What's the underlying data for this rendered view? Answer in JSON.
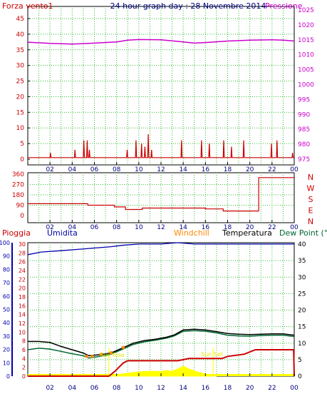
{
  "colors": {
    "wind": "#cc0000",
    "pressure": "#cc00cc",
    "title": "#000080",
    "direction": "#cc0000",
    "rain": "#cc0000",
    "humidity": "#0000aa",
    "windchill": "#ff8800",
    "temperature": "#000000",
    "dewpoint": "#006633",
    "solar": "#ffff00",
    "grid": "#33bb33",
    "axis": "#000000"
  },
  "top_chart": {
    "title": "24 hour graph day : 28 Novembre 2014",
    "left_label": "Forza vento1",
    "right_label": "Pressione",
    "left_ticks": [
      "0",
      "5",
      "10",
      "15",
      "20",
      "25",
      "30",
      "35",
      "40",
      "45"
    ],
    "right_ticks": [
      "975",
      "980",
      "985",
      "990",
      "995",
      "1000",
      "1005",
      "1010",
      "1015",
      "1020",
      "1025"
    ]
  },
  "dir_chart": {
    "left_ticks": [
      "0",
      "90",
      "180",
      "270",
      "360"
    ],
    "right_labels": [
      "N",
      "W",
      "S",
      "E",
      "N"
    ]
  },
  "bottom_chart": {
    "legend": {
      "rain": "Pioggia",
      "humidity": "Umidita",
      "windchill": "Windchill",
      "temperature": "Temperatura",
      "dewpoint": "Dew Point (°C"
    },
    "humidity_ticks": [
      "0",
      "10",
      "20",
      "30",
      "40",
      "50",
      "60",
      "70",
      "80",
      "90",
      "100"
    ],
    "rain_ticks": [
      "0",
      "2",
      "4",
      "6",
      "8",
      "10",
      "12",
      "14",
      "16",
      "18",
      "20",
      "22",
      "24",
      "26",
      "28",
      "30"
    ],
    "temp_ticks": [
      "0",
      "5",
      "10",
      "15",
      "20",
      "25",
      "30",
      "35",
      "40"
    ],
    "sunrise_label": "Sun Rise",
    "sunset_label": "Sun Set"
  },
  "x_ticks": [
    "02",
    "04",
    "06",
    "08",
    "10",
    "12",
    "14",
    "16",
    "18",
    "20",
    "22",
    "00"
  ],
  "chart_data": [
    {
      "type": "line",
      "title": "24 hour graph day : 28 Novembre 2014",
      "xlabel": "",
      "x_unit": "hour",
      "xlim": [
        0,
        24
      ],
      "series": [
        {
          "name": "Forza vento1",
          "axis": "left",
          "ylim": [
            0,
            45
          ],
          "points": [
            [
              0,
              0.5
            ],
            [
              2,
              0.5
            ],
            [
              2.05,
              2
            ],
            [
              2.1,
              0.5
            ],
            [
              4.2,
              0.5
            ],
            [
              4.25,
              3
            ],
            [
              4.3,
              0.5
            ],
            [
              5.0,
              0.5
            ],
            [
              5.05,
              6
            ],
            [
              5.1,
              0.5
            ],
            [
              5.3,
              0.5
            ],
            [
              5.35,
              6
            ],
            [
              5.4,
              0.5
            ],
            [
              5.5,
              0.5
            ],
            [
              5.55,
              3
            ],
            [
              5.6,
              0.5
            ],
            [
              8.9,
              0.5
            ],
            [
              8.95,
              3
            ],
            [
              9.0,
              0.5
            ],
            [
              9.7,
              0.5
            ],
            [
              9.75,
              6
            ],
            [
              9.8,
              0.5
            ],
            [
              10.2,
              0.5
            ],
            [
              10.25,
              5
            ],
            [
              10.3,
              0.5
            ],
            [
              10.5,
              0.5
            ],
            [
              10.55,
              4
            ],
            [
              10.6,
              0.5
            ],
            [
              10.8,
              0.5
            ],
            [
              10.85,
              8
            ],
            [
              10.9,
              0.5
            ],
            [
              11.1,
              0.5
            ],
            [
              11.15,
              3
            ],
            [
              11.2,
              0.5
            ],
            [
              13.8,
              0.5
            ],
            [
              13.85,
              6
            ],
            [
              13.9,
              0.5
            ],
            [
              15.6,
              0.5
            ],
            [
              15.65,
              6
            ],
            [
              15.7,
              0.5
            ],
            [
              16.3,
              0.5
            ],
            [
              16.35,
              5
            ],
            [
              16.4,
              0.5
            ],
            [
              17.6,
              0.5
            ],
            [
              17.65,
              6
            ],
            [
              17.7,
              0.5
            ],
            [
              18.3,
              0.5
            ],
            [
              18.35,
              4
            ],
            [
              18.4,
              0.5
            ],
            [
              19.4,
              0.5
            ],
            [
              19.45,
              6
            ],
            [
              19.5,
              0.5
            ],
            [
              21.9,
              0.5
            ],
            [
              21.95,
              5
            ],
            [
              22.0,
              0.5
            ],
            [
              22.4,
              0.5
            ],
            [
              22.45,
              6
            ],
            [
              22.5,
              0.5
            ],
            [
              23.8,
              0.5
            ],
            [
              23.85,
              2
            ],
            [
              23.9,
              0.5
            ],
            [
              24,
              0.5
            ]
          ]
        },
        {
          "name": "Pressione",
          "axis": "right",
          "ylim": [
            975,
            1025
          ],
          "points": [
            [
              0,
              1014.2
            ],
            [
              2,
              1013.8
            ],
            [
              4,
              1013.6
            ],
            [
              6,
              1013.9
            ],
            [
              8,
              1014.3
            ],
            [
              9,
              1014.9
            ],
            [
              10,
              1015.1
            ],
            [
              12,
              1015.0
            ],
            [
              14,
              1014.3
            ],
            [
              15,
              1013.9
            ],
            [
              16,
              1014.1
            ],
            [
              18,
              1014.6
            ],
            [
              20,
              1014.9
            ],
            [
              22,
              1015.0
            ],
            [
              23,
              1014.9
            ],
            [
              24,
              1014.6
            ]
          ]
        }
      ]
    },
    {
      "type": "line",
      "x_unit": "hour",
      "xlim": [
        0,
        24
      ],
      "ylim": [
        0,
        360
      ],
      "series": [
        {
          "points": [
            [
              0,
              103
            ],
            [
              5.4,
              103
            ],
            [
              5.4,
              90
            ],
            [
              7.8,
              90
            ],
            [
              7.8,
              75
            ],
            [
              8.8,
              75
            ],
            [
              8.8,
              53
            ],
            [
              10.3,
              53
            ],
            [
              10.3,
              65
            ],
            [
              16.0,
              65
            ],
            [
              16.0,
              58
            ],
            [
              17.6,
              58
            ],
            [
              17.6,
              40
            ],
            [
              20.8,
              40
            ],
            [
              20.8,
              330
            ],
            [
              24,
              330
            ]
          ]
        }
      ]
    },
    {
      "type": "line",
      "x_unit": "hour",
      "xlim": [
        0,
        24
      ],
      "series": [
        {
          "name": "Umidita",
          "axis": "humidity",
          "ylim": [
            0,
            100
          ],
          "points": [
            [
              0,
              91
            ],
            [
              1.2,
              93
            ],
            [
              3.0,
              94
            ],
            [
              4.5,
              95
            ],
            [
              6.0,
              96
            ],
            [
              7.5,
              97
            ],
            [
              8.5,
              98
            ],
            [
              10.0,
              99
            ],
            [
              12.0,
              99
            ],
            [
              13.5,
              100
            ],
            [
              15.0,
              99
            ],
            [
              17.0,
              99
            ],
            [
              20.0,
              99
            ],
            [
              24,
              99
            ]
          ]
        },
        {
          "name": "Pioggia",
          "axis": "rain",
          "ylim": [
            0,
            30
          ],
          "points": [
            [
              0,
              0
            ],
            [
              7.3,
              0
            ],
            [
              7.8,
              1.0
            ],
            [
              8.2,
              2.0
            ],
            [
              8.6,
              3.0
            ],
            [
              9.0,
              3.5
            ],
            [
              13.5,
              3.5
            ],
            [
              14.5,
              4.0
            ],
            [
              17.5,
              4.0
            ],
            [
              18.0,
              4.5
            ],
            [
              19.5,
              5.0
            ],
            [
              20.5,
              6.0
            ],
            [
              23.0,
              6.0
            ],
            [
              23.95,
              6.0
            ],
            [
              24,
              0
            ]
          ]
        },
        {
          "name": "Temperatura",
          "axis": "temp",
          "ylim": [
            0,
            40
          ],
          "points": [
            [
              0,
              10.5
            ],
            [
              1,
              10.5
            ],
            [
              2,
              10.2
            ],
            [
              3,
              9.0
            ],
            [
              4,
              8.0
            ],
            [
              5,
              7.0
            ],
            [
              5.5,
              6.2
            ],
            [
              6.5,
              6.5
            ],
            [
              7.5,
              7.0
            ],
            [
              8.5,
              8.5
            ],
            [
              9.5,
              10.0
            ],
            [
              10.5,
              10.8
            ],
            [
              11.5,
              11.2
            ],
            [
              12.5,
              11.8
            ],
            [
              13.2,
              12.5
            ],
            [
              14.0,
              14.0
            ],
            [
              15.0,
              14.2
            ],
            [
              16.0,
              14.0
            ],
            [
              17.0,
              13.5
            ],
            [
              18.0,
              12.9
            ],
            [
              19.0,
              12.7
            ],
            [
              20.0,
              12.6
            ],
            [
              21.0,
              12.7
            ],
            [
              22.0,
              12.8
            ],
            [
              23.0,
              12.8
            ],
            [
              24,
              12.4
            ]
          ]
        },
        {
          "name": "Dew Point (°C",
          "axis": "temp",
          "ylim": [
            0,
            40
          ],
          "points": [
            [
              0,
              8.0
            ],
            [
              1,
              8.5
            ],
            [
              2,
              8.2
            ],
            [
              3,
              7.5
            ],
            [
              4,
              6.8
            ],
            [
              5,
              6.2
            ],
            [
              5.5,
              5.5
            ],
            [
              6.5,
              6.0
            ],
            [
              7.5,
              6.7
            ],
            [
              8.5,
              8.1
            ],
            [
              9.5,
              9.6
            ],
            [
              10.5,
              10.4
            ],
            [
              11.5,
              10.9
            ],
            [
              12.5,
              11.5
            ],
            [
              13.2,
              12.2
            ],
            [
              14.0,
              13.6
            ],
            [
              15.0,
              13.8
            ],
            [
              16.0,
              13.6
            ],
            [
              17.0,
              13.1
            ],
            [
              18.0,
              12.4
            ],
            [
              19.0,
              12.2
            ],
            [
              20.0,
              12.1
            ],
            [
              21.0,
              12.3
            ],
            [
              22.0,
              12.4
            ],
            [
              23.0,
              12.4
            ],
            [
              24,
              12.0
            ]
          ]
        },
        {
          "name": "Windchill",
          "axis": "temp",
          "ylim": [
            0,
            40
          ],
          "points": [
            [
              5.3,
              6.0
            ],
            [
              5.8,
              6.0
            ],
            [
              6.6,
              6.6
            ],
            [
              7.5,
              7.1
            ],
            [
              8.6,
              8.7
            ]
          ]
        },
        {
          "name": "Solar",
          "axis": "temp",
          "ylim": [
            0,
            40
          ],
          "points": [
            [
              7.3,
              0
            ],
            [
              8.0,
              0.4
            ],
            [
              9.0,
              0.9
            ],
            [
              10.0,
              1.3
            ],
            [
              11.0,
              1.5
            ],
            [
              12.0,
              1.4
            ],
            [
              12.5,
              1.7
            ],
            [
              13.0,
              1.5
            ],
            [
              13.5,
              2.2
            ],
            [
              14.0,
              3.0
            ],
            [
              14.5,
              2.2
            ],
            [
              15.0,
              1.6
            ],
            [
              15.5,
              1.0
            ],
            [
              16.0,
              0.7
            ],
            [
              16.7,
              0.2
            ],
            [
              17.0,
              0
            ]
          ]
        }
      ],
      "annotations": [
        {
          "text": "Sun Rise",
          "x": 7.3
        },
        {
          "text": "Sun Set",
          "x": 16.7
        }
      ]
    }
  ]
}
